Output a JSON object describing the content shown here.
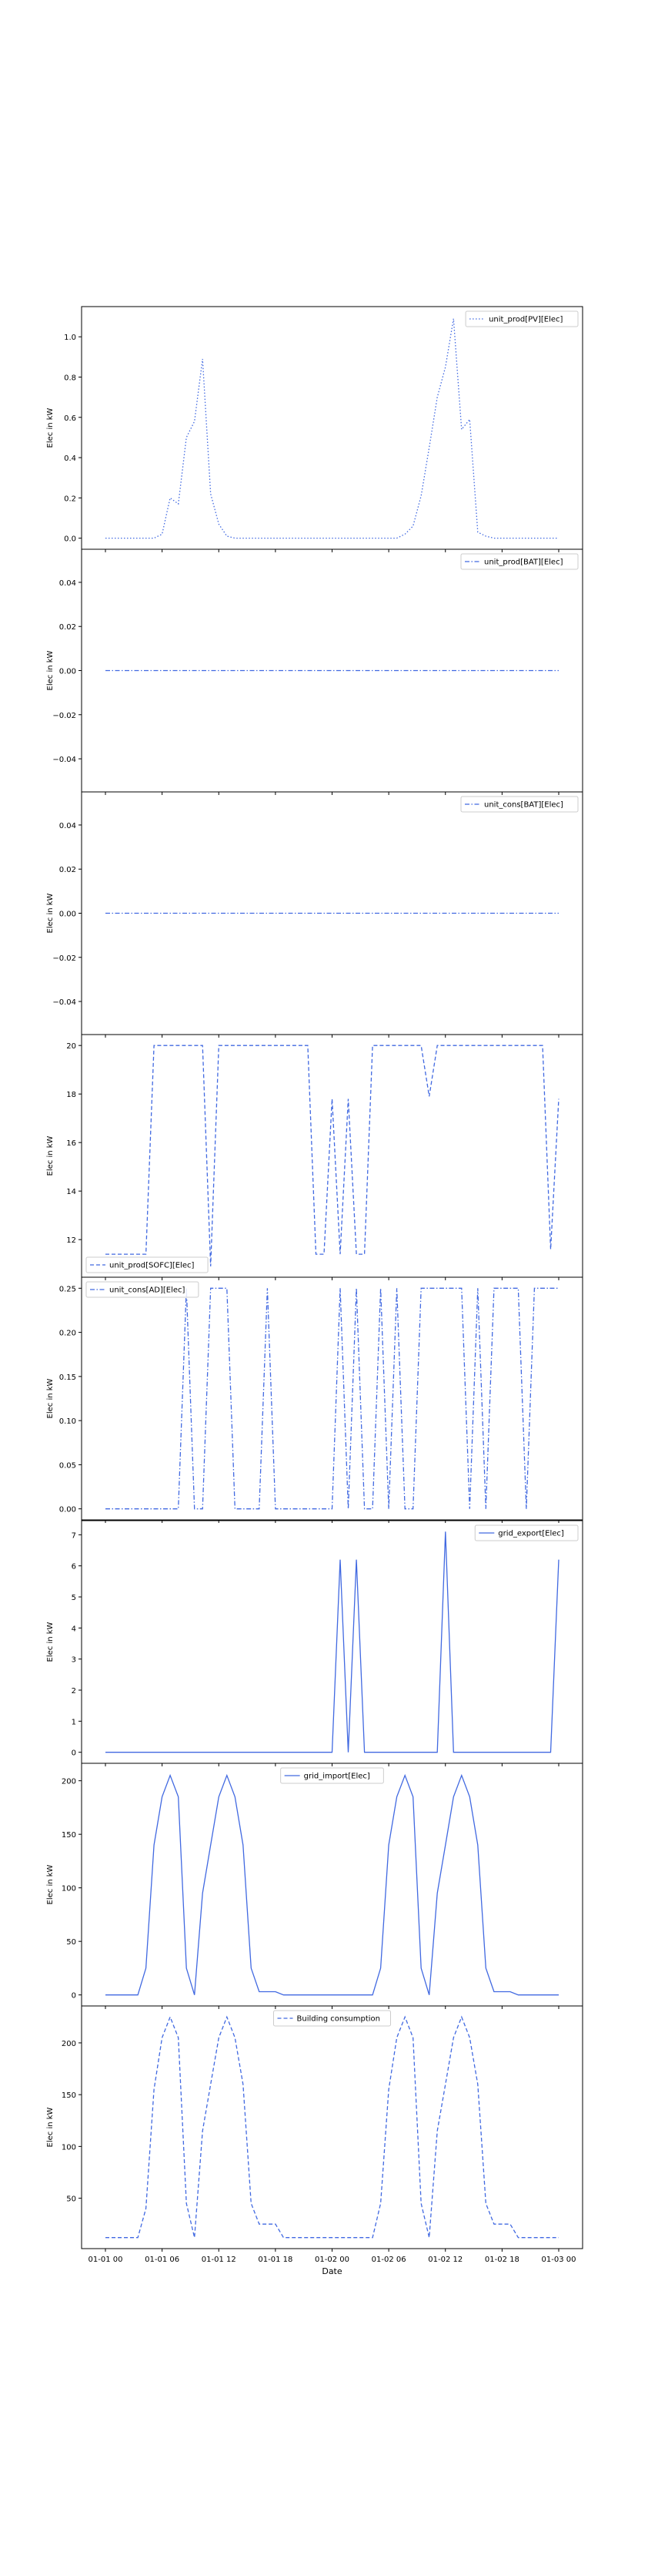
{
  "figure": {
    "xlabel": "Date",
    "line_color": "#4169e1"
  },
  "x_ticks": [
    "01-01 00",
    "01-01 06",
    "01-01 12",
    "01-01 18",
    "01-02 00",
    "01-02 06",
    "01-02 12",
    "01-02 18",
    "01-03 00"
  ],
  "chart_data": [
    {
      "type": "line",
      "ylabel": "Elec in kW",
      "linestyle": "dotted",
      "legend_loc": "upper-right",
      "series": [
        {
          "name": "unit_prod[PV][Elec]",
          "values": [
            0,
            0,
            0,
            0,
            0,
            0,
            0,
            0.02,
            0.2,
            0.17,
            0.5,
            0.58,
            0.89,
            0.22,
            0.07,
            0.01,
            0,
            0,
            0,
            0,
            0,
            0,
            0,
            0,
            0,
            0,
            0,
            0,
            0,
            0,
            0,
            0,
            0,
            0,
            0,
            0,
            0,
            0.02,
            0.06,
            0.21,
            0.45,
            0.7,
            0.85,
            1.09,
            0.54,
            0.59,
            0.03,
            0.01,
            0,
            0,
            0,
            0,
            0,
            0,
            0,
            0,
            0
          ]
        }
      ],
      "yticks": [
        "0.0",
        "0.2",
        "0.4",
        "0.6",
        "0.8",
        "1.0"
      ],
      "ytick_values": [
        0,
        0.2,
        0.4,
        0.6,
        0.8,
        1.0
      ],
      "ylim": [
        -0.055,
        1.15
      ]
    },
    {
      "type": "line",
      "ylabel": "Elec in kW",
      "linestyle": "dashdot",
      "legend_loc": "upper-right",
      "series": [
        {
          "name": "unit_prod[BAT][Elec]",
          "values": [
            0,
            0,
            0,
            0,
            0,
            0,
            0,
            0,
            0,
            0,
            0,
            0,
            0,
            0,
            0,
            0,
            0,
            0,
            0,
            0,
            0,
            0,
            0,
            0,
            0,
            0,
            0,
            0,
            0,
            0,
            0,
            0,
            0,
            0,
            0,
            0,
            0,
            0,
            0,
            0,
            0,
            0,
            0,
            0,
            0,
            0,
            0,
            0,
            0,
            0,
            0,
            0,
            0,
            0,
            0,
            0,
            0
          ]
        }
      ],
      "yticks": [
        "−0.04",
        "−0.02",
        "0.00",
        "0.02",
        "0.04"
      ],
      "ytick_values": [
        -0.04,
        -0.02,
        0,
        0.02,
        0.04
      ],
      "ylim": [
        -0.055,
        0.055
      ]
    },
    {
      "type": "line",
      "ylabel": "Elec in kW",
      "linestyle": "dashdot",
      "legend_loc": "upper-right",
      "series": [
        {
          "name": "unit_cons[BAT][Elec]",
          "values": [
            0,
            0,
            0,
            0,
            0,
            0,
            0,
            0,
            0,
            0,
            0,
            0,
            0,
            0,
            0,
            0,
            0,
            0,
            0,
            0,
            0,
            0,
            0,
            0,
            0,
            0,
            0,
            0,
            0,
            0,
            0,
            0,
            0,
            0,
            0,
            0,
            0,
            0,
            0,
            0,
            0,
            0,
            0,
            0,
            0,
            0,
            0,
            0,
            0,
            0,
            0,
            0,
            0,
            0,
            0,
            0,
            0
          ]
        }
      ],
      "yticks": [
        "−0.04",
        "−0.02",
        "0.00",
        "0.02",
        "0.04"
      ],
      "ytick_values": [
        -0.04,
        -0.02,
        0,
        0.02,
        0.04
      ],
      "ylim": [
        -0.055,
        0.055
      ]
    },
    {
      "type": "line",
      "ylabel": "Elec in kW",
      "linestyle": "dashed",
      "legend_loc": "lower-left",
      "series": [
        {
          "name": "unit_prod[SOFC][Elec]",
          "values": [
            11.4,
            11.4,
            11.4,
            11.4,
            11.4,
            11.4,
            20,
            20,
            20,
            20,
            20,
            20,
            20,
            10.9,
            20,
            20,
            20,
            20,
            20,
            20,
            20,
            20,
            20,
            20,
            20,
            20,
            11.4,
            11.4,
            17.8,
            11.4,
            17.8,
            11.4,
            11.4,
            20,
            20,
            20,
            20,
            20,
            20,
            20,
            17.9,
            20,
            20,
            20,
            20,
            20,
            20,
            20,
            20,
            20,
            20,
            20,
            20,
            20,
            20,
            11.6,
            17.8
          ]
        }
      ],
      "yticks": [
        "12",
        "14",
        "16",
        "18",
        "20"
      ],
      "ytick_values": [
        12,
        14,
        16,
        18,
        20
      ],
      "ylim": [
        10.45,
        20.45
      ]
    },
    {
      "type": "line",
      "ylabel": "Elec in kW",
      "linestyle": "dashdot",
      "legend_loc": "upper-left",
      "series": [
        {
          "name": "unit_cons[AD][Elec]",
          "values": [
            0,
            0,
            0,
            0,
            0,
            0,
            0,
            0,
            0,
            0,
            0.25,
            0,
            0,
            0.25,
            0.25,
            0.25,
            0,
            0,
            0,
            0,
            0.25,
            0,
            0,
            0,
            0,
            0,
            0,
            0,
            0,
            0.25,
            0,
            0.25,
            0,
            0,
            0.25,
            0,
            0.25,
            0,
            0,
            0.25,
            0.25,
            0.25,
            0.25,
            0.25,
            0.25,
            0,
            0.25,
            0,
            0.25,
            0.25,
            0.25,
            0.25,
            0,
            0.25,
            0.25,
            0.25,
            0.25
          ]
        }
      ],
      "yticks": [
        "0.00",
        "0.05",
        "0.10",
        "0.15",
        "0.20",
        "0.25"
      ],
      "ytick_values": [
        0,
        0.05,
        0.1,
        0.15,
        0.2,
        0.25
      ],
      "ylim": [
        -0.0125,
        0.2625
      ]
    },
    {
      "type": "line",
      "ylabel": "Elec in kW",
      "linestyle": "solid",
      "legend_loc": "upper-right",
      "series": [
        {
          "name": "grid_export[Elec]",
          "values": [
            0,
            0,
            0,
            0,
            0,
            0,
            0,
            0,
            0,
            0,
            0,
            0,
            0,
            0,
            0,
            0,
            0,
            0,
            0,
            0,
            0,
            0,
            0,
            0,
            0,
            0,
            0,
            0,
            0,
            6.2,
            0,
            6.2,
            0,
            0,
            0,
            0,
            0,
            0,
            0,
            0,
            0,
            0,
            7.1,
            0,
            0,
            0,
            0,
            0,
            0,
            0,
            0,
            0,
            0,
            0,
            0,
            0,
            6.2
          ]
        }
      ],
      "yticks": [
        "0",
        "1",
        "2",
        "3",
        "4",
        "5",
        "6",
        "7"
      ],
      "ytick_values": [
        0,
        1,
        2,
        3,
        4,
        5,
        6,
        7
      ],
      "ylim": [
        -0.355,
        7.455
      ]
    },
    {
      "type": "line",
      "ylabel": "Elec in kW",
      "linestyle": "solid",
      "legend_loc": "upper-center",
      "series": [
        {
          "name": "grid_import[Elec]",
          "values": [
            0,
            0,
            0,
            0,
            0,
            25,
            140,
            185,
            205,
            185,
            25,
            0,
            95,
            140,
            185,
            205,
            185,
            140,
            25,
            3,
            3,
            3,
            0,
            0,
            0,
            0,
            0,
            0,
            0,
            0,
            0,
            0,
            0,
            0,
            25,
            140,
            185,
            205,
            185,
            25,
            0,
            95,
            140,
            185,
            205,
            185,
            140,
            25,
            3,
            3,
            3,
            0,
            0,
            0,
            0,
            0,
            0
          ]
        }
      ],
      "yticks": [
        "0",
        "50",
        "100",
        "150",
        "200"
      ],
      "ytick_values": [
        0,
        50,
        100,
        150,
        200
      ],
      "ylim": [
        -10.3,
        216.3
      ]
    },
    {
      "type": "line",
      "ylabel": "Elec in kW",
      "linestyle": "dashed",
      "legend_loc": "upper-center",
      "series": [
        {
          "name": "Building consumption",
          "values": [
            12,
            12,
            12,
            12,
            12,
            40,
            155,
            205,
            225,
            205,
            45,
            12,
            115,
            160,
            205,
            225,
            205,
            160,
            45,
            25,
            25,
            25,
            12,
            12,
            12,
            12,
            12,
            12,
            12,
            12,
            12,
            12,
            12,
            12,
            45,
            155,
            205,
            225,
            205,
            45,
            12,
            115,
            160,
            205,
            225,
            205,
            160,
            45,
            25,
            25,
            25,
            12,
            12,
            12,
            12,
            12,
            12
          ]
        }
      ],
      "yticks": [
        "50",
        "100",
        "150",
        "200"
      ],
      "ytick_values": [
        50,
        100,
        150,
        200
      ],
      "ylim": [
        1.35,
        235.65
      ]
    }
  ]
}
